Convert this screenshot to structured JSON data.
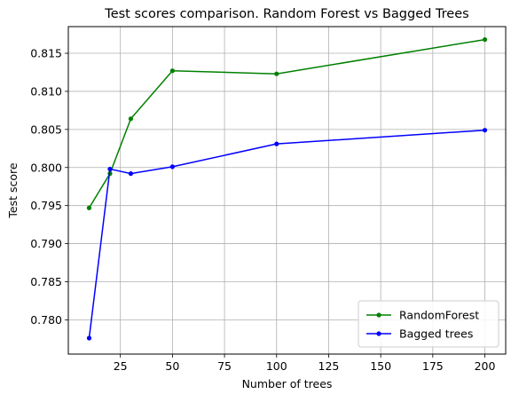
{
  "chart_data": {
    "type": "line",
    "title": "Test scores comparison. Random Forest vs Bagged Trees",
    "xlabel": "Number of trees",
    "ylabel": "Test score",
    "xlim": [
      0,
      210
    ],
    "ylim": [
      0.7755,
      0.8185
    ],
    "x_ticks": [
      25,
      50,
      75,
      100,
      125,
      150,
      175,
      200
    ],
    "y_ticks": [
      0.78,
      0.785,
      0.79,
      0.795,
      0.8,
      0.805,
      0.81,
      0.815
    ],
    "x_tick_labels": [
      "25",
      "50",
      "75",
      "100",
      "125",
      "150",
      "175",
      "200"
    ],
    "y_tick_labels": [
      "0.780",
      "0.785",
      "0.790",
      "0.795",
      "0.800",
      "0.805",
      "0.810",
      "0.815"
    ],
    "grid": true,
    "legend_position": "lower-right",
    "series": [
      {
        "name": "RandomForest",
        "color": "#008000",
        "x": [
          10,
          20,
          30,
          50,
          100,
          200
        ],
        "values": [
          0.7947,
          0.7992,
          0.8064,
          0.8127,
          0.8123,
          0.8168
        ]
      },
      {
        "name": "Bagged trees",
        "color": "#0000ff",
        "x": [
          10,
          20,
          30,
          50,
          100,
          200
        ],
        "values": [
          0.7776,
          0.7998,
          0.7992,
          0.8001,
          0.8031,
          0.8049
        ]
      }
    ]
  }
}
